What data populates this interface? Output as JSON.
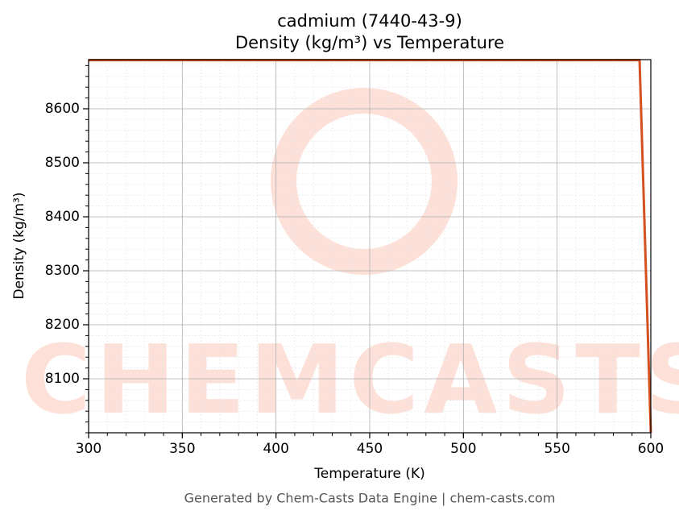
{
  "chart_data": {
    "type": "line",
    "title": "cadmium (7440-43-9)",
    "subtitle": "Density (kg/m³) vs Temperature",
    "x_label": "Temperature (K)",
    "y_label": "Density (kg/m³)",
    "watermark": "CHEMCASTS",
    "footer": "Generated by Chem-Casts Data Engine | chem-casts.com",
    "x": [
      300,
      594,
      600
    ],
    "series": [
      {
        "name": "Density",
        "color": "#d4501e",
        "values": [
          8690,
          8690,
          8000
        ]
      }
    ],
    "xlim": [
      300,
      600
    ],
    "xticks": [
      300,
      350,
      400,
      450,
      500,
      550,
      600
    ],
    "ylim": [
      8000,
      8691
    ],
    "yticks": [
      8100,
      8200,
      8300,
      8400,
      8500,
      8600
    ],
    "grid": true,
    "minor_grid": true
  }
}
